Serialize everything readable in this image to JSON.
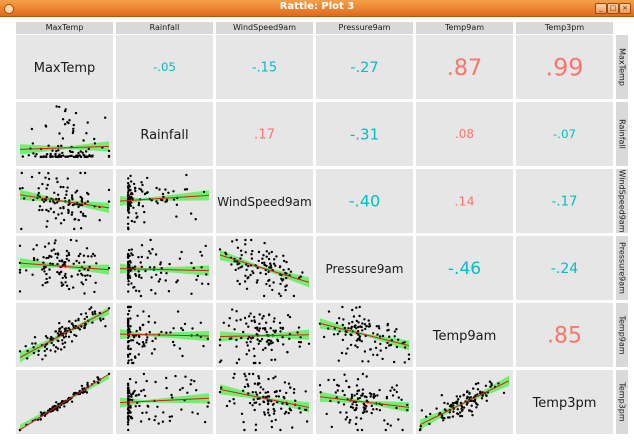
{
  "window": {
    "title": "Rattle: Plot 3",
    "buttons": [
      "_",
      "□",
      "×"
    ]
  },
  "variables": [
    "MaxTemp",
    "Rainfall",
    "WindSpeed9am",
    "Pressure9am",
    "Temp9am",
    "Temp3pm"
  ],
  "correlations": [
    {
      "row": 0,
      "col": 1,
      "label": "-.05",
      "value": -0.05
    },
    {
      "row": 0,
      "col": 2,
      "label": "-.15",
      "value": -0.15
    },
    {
      "row": 0,
      "col": 3,
      "label": "-.27",
      "value": -0.27
    },
    {
      "row": 0,
      "col": 4,
      "label": ".87",
      "value": 0.87
    },
    {
      "row": 0,
      "col": 5,
      "label": ".99",
      "value": 0.99
    },
    {
      "row": 1,
      "col": 2,
      "label": ".17",
      "value": 0.17
    },
    {
      "row": 1,
      "col": 3,
      "label": "-.31",
      "value": -0.31
    },
    {
      "row": 1,
      "col": 4,
      "label": ".08",
      "value": 0.08
    },
    {
      "row": 1,
      "col": 5,
      "label": "-.07",
      "value": -0.07
    },
    {
      "row": 2,
      "col": 3,
      "label": "-.40",
      "value": -0.4
    },
    {
      "row": 2,
      "col": 4,
      "label": ".14",
      "value": 0.14
    },
    {
      "row": 2,
      "col": 5,
      "label": "-.17",
      "value": -0.17
    },
    {
      "row": 3,
      "col": 4,
      "label": "-.46",
      "value": -0.46
    },
    {
      "row": 3,
      "col": 5,
      "label": "-.24",
      "value": -0.24
    },
    {
      "row": 4,
      "col": 5,
      "label": ".85",
      "value": 0.85
    }
  ],
  "colors": {
    "panel": "#e6e6e6",
    "header": "#d9d9d9",
    "positive_corr": "#f8766d",
    "negative_corr": "#00bfc4",
    "smooth_band": "#5cf05c",
    "fit_line": "#d61c1c",
    "points": "#000000"
  },
  "chart_data": {
    "type": "scatter",
    "subtype": "pairs-matrix",
    "variables": [
      "MaxTemp",
      "Rainfall",
      "WindSpeed9am",
      "Pressure9am",
      "Temp9am",
      "Temp3pm"
    ],
    "upper": "correlation coefficients",
    "diagonal": "variable names",
    "lower": "scatter plots with linear fit and confidence band",
    "grid": false
  }
}
